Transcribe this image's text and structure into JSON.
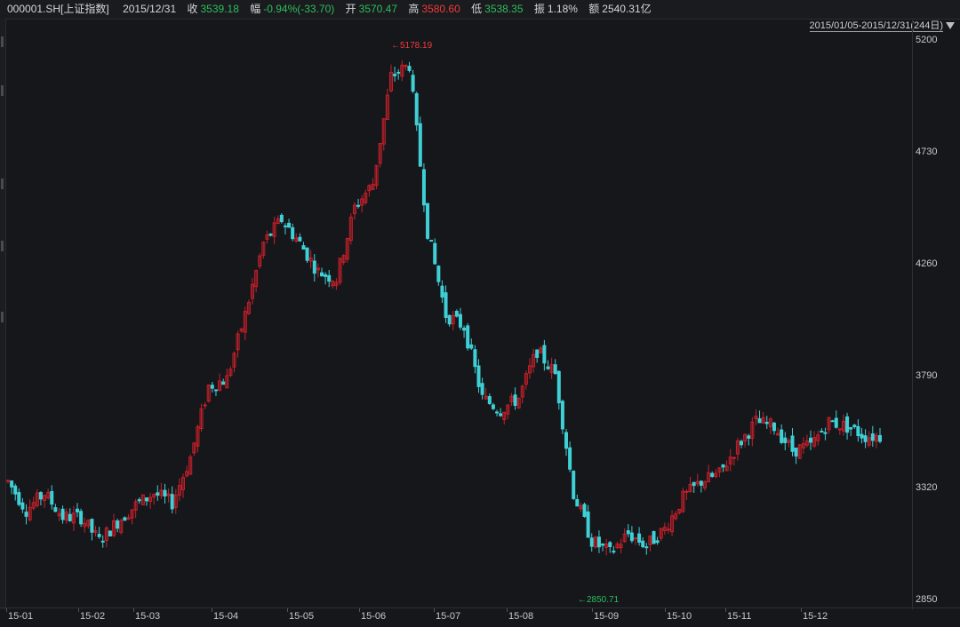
{
  "header": {
    "symbol": "000001.SH[上证指数]",
    "date": "2015/12/31",
    "close_label": "收",
    "close_value": "3539.18",
    "change_label": "幅",
    "change_value": "-0.94%(-33.70)",
    "open_label": "开",
    "open_value": "3570.47",
    "high_label": "高",
    "high_value": "3580.60",
    "low_label": "低",
    "low_value": "3538.35",
    "amplitude_label": "振",
    "amplitude_value": "1.18%",
    "amount_label": "额",
    "amount_value": "2540.31亿"
  },
  "range_selector": {
    "label": "2015/01/05-2015/12/31(244日)",
    "icon": "triangle-down-icon"
  },
  "colors": {
    "up": "#c8202a",
    "down": "#3fd0d6",
    "background": "#16171b",
    "high_annot": "#f03a3a",
    "low_annot": "#2dbd5b"
  },
  "chart_data": {
    "type": "candlestick",
    "y_ticks": [
      "5200",
      "4730",
      "4260",
      "3790",
      "3320",
      "2850"
    ],
    "ylim": [
      2850,
      5200
    ],
    "x_ticks": [
      "15-01",
      "15-02",
      "15-03",
      "15-04",
      "15-05",
      "15-06",
      "15-07",
      "15-08",
      "15-09",
      "15-10",
      "15-11",
      "15-12"
    ],
    "annotations": {
      "high": "5178.19",
      "low": "2850.71"
    },
    "monthly_path": [
      [
        3350,
        3230,
        3300,
        3200
      ],
      [
        3200,
        3100,
        3180,
        3250
      ],
      [
        3300,
        3260,
        3450,
        3750
      ],
      [
        3780,
        4050,
        4350,
        4450
      ],
      [
        4350,
        4230,
        4200,
        4500
      ],
      [
        4600,
        5050,
        5100,
        4400
      ],
      [
        4050,
        4000,
        3700,
        3650
      ],
      [
        3700,
        3900,
        3800,
        3300
      ],
      [
        3100,
        3050,
        3130,
        3080
      ],
      [
        3150,
        3280,
        3350,
        3380
      ],
      [
        3500,
        3600,
        3580,
        3480
      ],
      [
        3500,
        3600,
        3580,
        3540
      ]
    ]
  }
}
